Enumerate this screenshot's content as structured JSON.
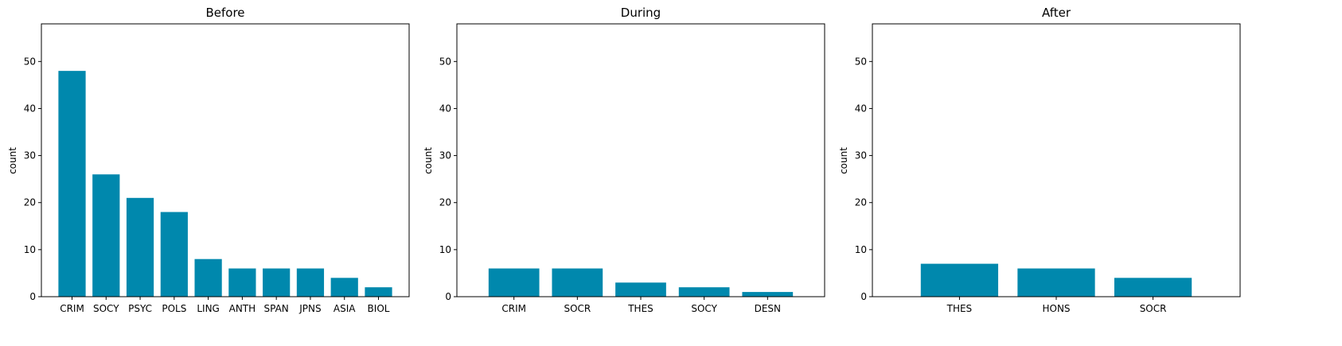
{
  "colors": {
    "bar": "#0088ad",
    "axis": "#000000"
  },
  "chart_data": [
    {
      "type": "bar",
      "title": "Before",
      "ylabel": "count",
      "xlabel": "",
      "ylim": [
        0,
        58
      ],
      "yticks": [
        0,
        10,
        20,
        30,
        40,
        50
      ],
      "grid": false,
      "categories": [
        "CRIM",
        "SOCY",
        "PSYC",
        "POLS",
        "LING",
        "ANTH",
        "SPAN",
        "JPNS",
        "ASIA",
        "BIOL"
      ],
      "values": [
        48,
        26,
        21,
        18,
        8,
        6,
        6,
        6,
        4,
        2
      ]
    },
    {
      "type": "bar",
      "title": "During",
      "ylabel": "count",
      "xlabel": "",
      "ylim": [
        0,
        58
      ],
      "yticks": [
        0,
        10,
        20,
        30,
        40,
        50
      ],
      "grid": false,
      "categories": [
        "CRIM",
        "SOCR",
        "THES",
        "SOCY",
        "DESN"
      ],
      "values": [
        6,
        6,
        3,
        2,
        1
      ]
    },
    {
      "type": "bar",
      "title": "After",
      "ylabel": "count",
      "xlabel": "",
      "ylim": [
        0,
        58
      ],
      "yticks": [
        0,
        10,
        20,
        30,
        40,
        50
      ],
      "grid": false,
      "categories": [
        "THES",
        "HONS",
        "SOCR"
      ],
      "values": [
        7,
        6,
        4
      ]
    }
  ]
}
